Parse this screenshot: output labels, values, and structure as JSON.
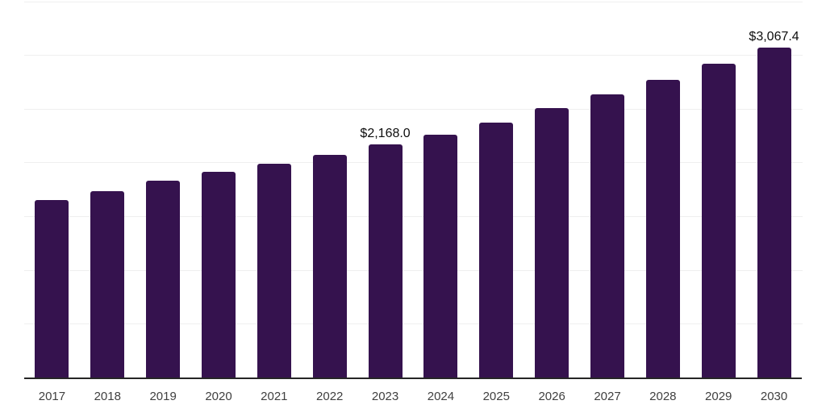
{
  "chart_data": {
    "type": "bar",
    "title": "",
    "xlabel": "",
    "ylabel": "",
    "categories": [
      "2017",
      "2018",
      "2019",
      "2020",
      "2021",
      "2022",
      "2023",
      "2024",
      "2025",
      "2026",
      "2027",
      "2028",
      "2029",
      "2030"
    ],
    "values": [
      1650,
      1731,
      1834,
      1911,
      1989,
      2073,
      2168.0,
      2261,
      2372,
      2504,
      2635,
      2772,
      2917,
      3067.4
    ],
    "data_labels": [
      {
        "category": "2023",
        "text": "$2,168.0"
      },
      {
        "category": "2030",
        "text": "$3,067.4"
      }
    ],
    "ylim": [
      0,
      3500
    ],
    "gridline_step": 500,
    "grid": true,
    "legend": "none",
    "bar_color": "#35124E",
    "axis_line_color": "#262626",
    "gridline_color": "#efefef",
    "tick_label_color": "#404040",
    "data_label_color": "#0d0d0d"
  }
}
